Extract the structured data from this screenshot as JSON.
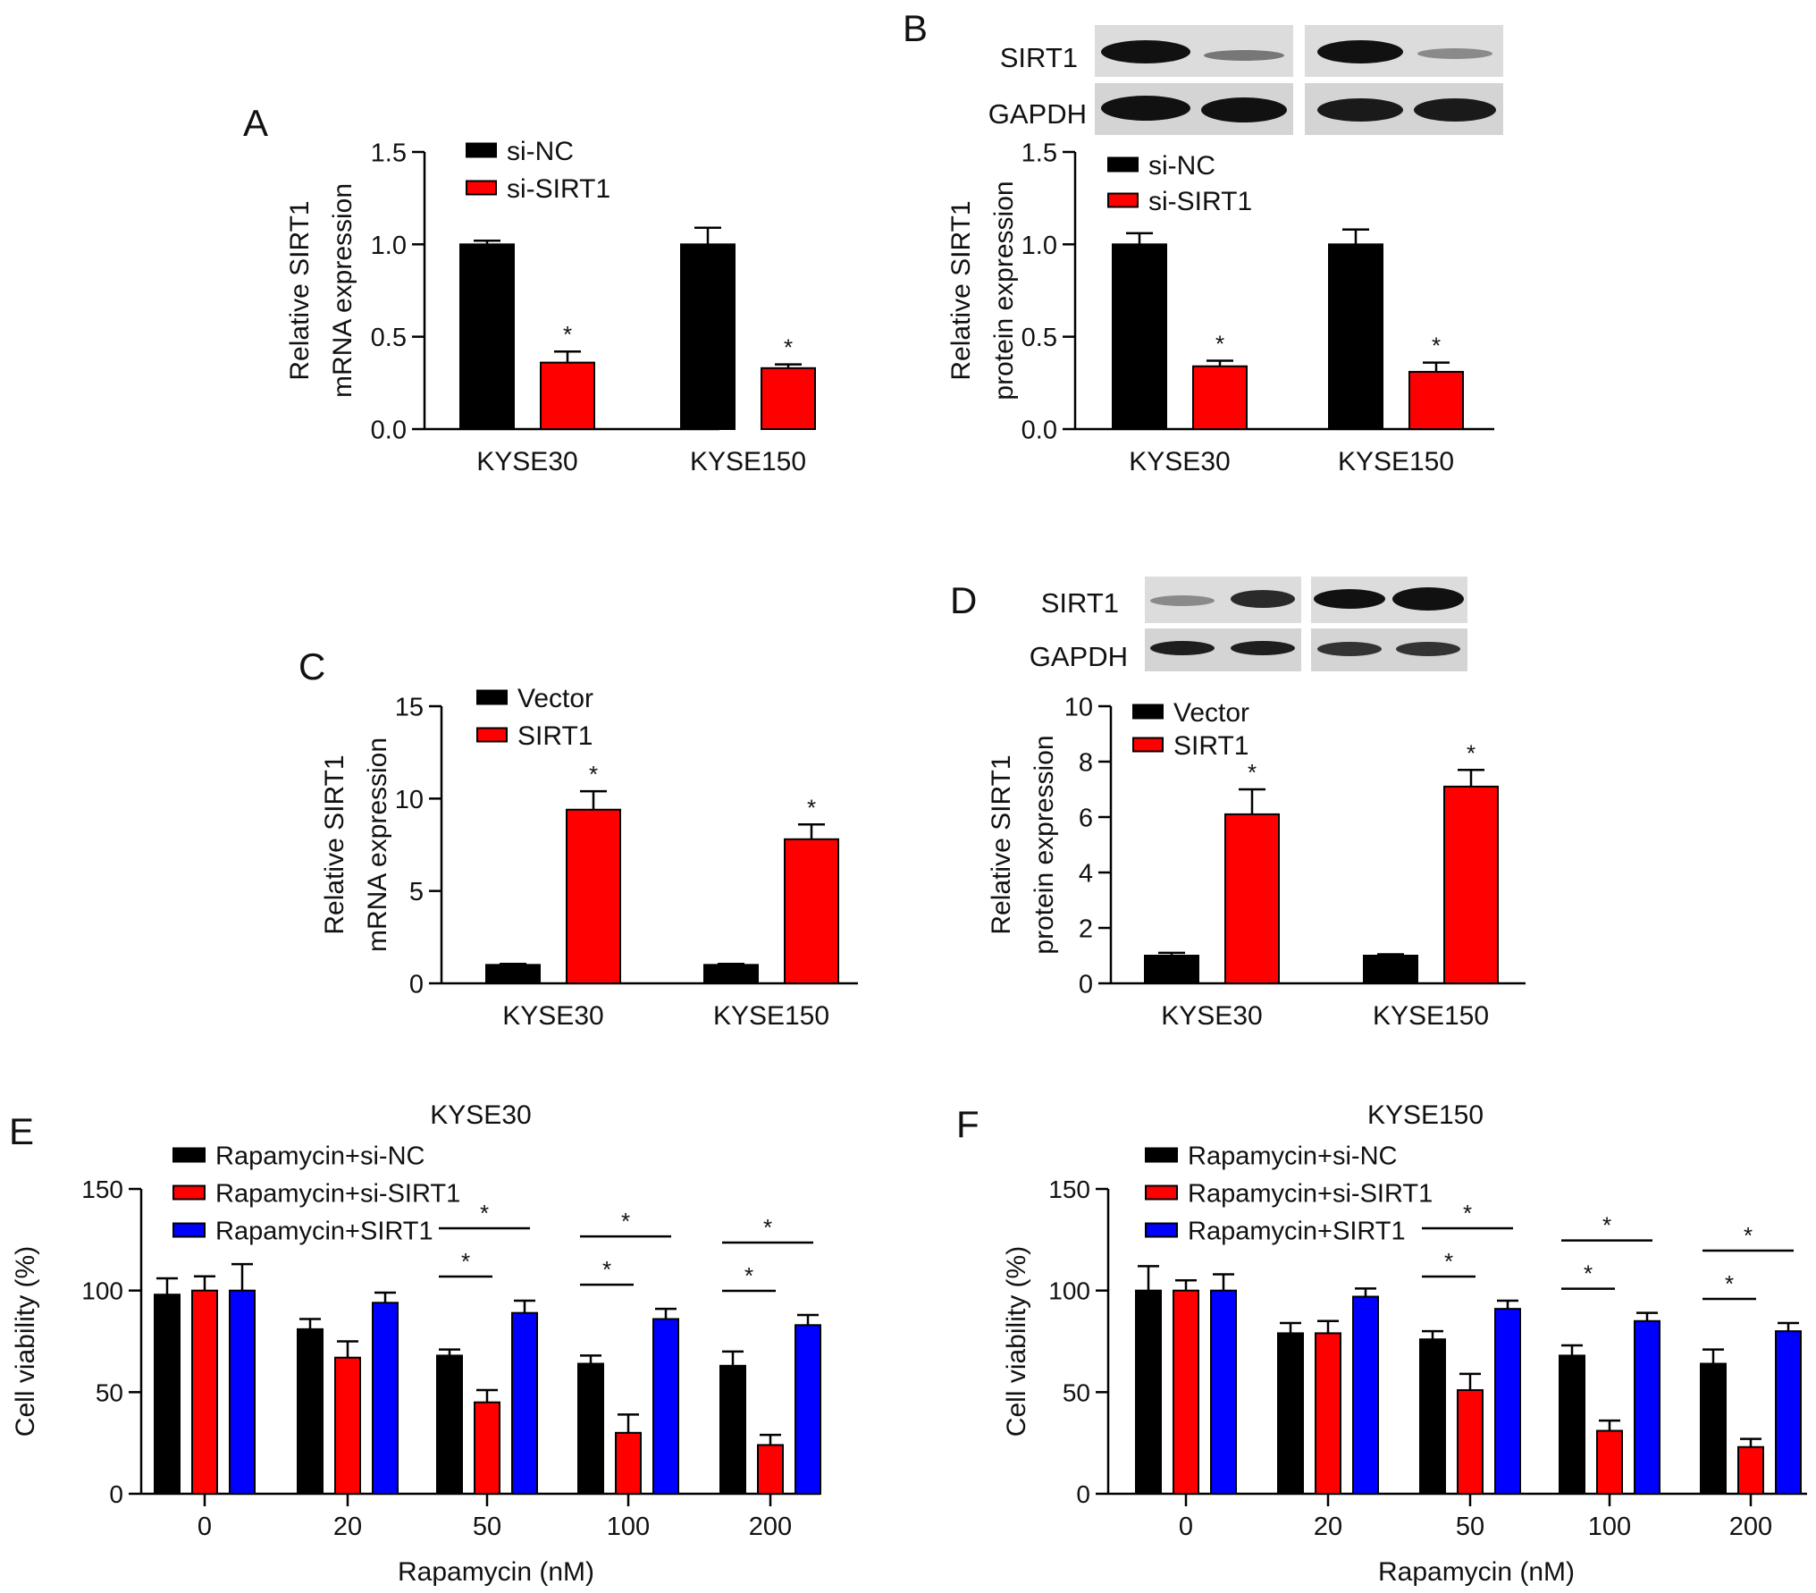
{
  "colors": {
    "black": "#000000",
    "red": "#ff0000",
    "blue": "#0000ff",
    "blot_bg": "#d8d8d8",
    "band": "#111111"
  },
  "blot_labels": {
    "sirt1": "SIRT1",
    "gapdh": "GAPDH"
  },
  "chart_data": [
    {
      "panel": "A",
      "type": "bar",
      "title": "",
      "categories": [
        "KYSE30",
        "KYSE150"
      ],
      "ylabel": [
        "Relative SIRT1",
        "mRNA expression"
      ],
      "xlabel": "",
      "ylim": [
        0,
        1.5
      ],
      "yticks": [
        0.0,
        0.5,
        1.0,
        1.5
      ],
      "tick_decimals": 1,
      "legend_position": "top-left",
      "grid": false,
      "series": [
        {
          "name": "si-NC",
          "color": "black",
          "values": [
            1.0,
            1.0
          ],
          "errors": [
            0.02,
            0.09
          ],
          "stars": [
            false,
            false
          ]
        },
        {
          "name": "si-SIRT1",
          "color": "red",
          "values": [
            0.36,
            0.33
          ],
          "errors": [
            0.06,
            0.02
          ],
          "stars": [
            true,
            true
          ]
        }
      ]
    },
    {
      "panel": "B",
      "type": "bar",
      "title": "",
      "categories": [
        "KYSE30",
        "KYSE150"
      ],
      "ylabel": [
        "Relative SIRT1",
        "protein expression"
      ],
      "xlabel": "",
      "ylim": [
        0,
        1.5
      ],
      "yticks": [
        0.0,
        0.5,
        1.0,
        1.5
      ],
      "tick_decimals": 1,
      "legend_position": "top-left",
      "grid": false,
      "series": [
        {
          "name": "si-NC",
          "color": "black",
          "values": [
            1.0,
            1.0
          ],
          "errors": [
            0.06,
            0.08
          ],
          "stars": [
            false,
            false
          ]
        },
        {
          "name": "si-SIRT1",
          "color": "red",
          "values": [
            0.34,
            0.31
          ],
          "errors": [
            0.03,
            0.05
          ],
          "stars": [
            true,
            true
          ]
        }
      ]
    },
    {
      "panel": "C",
      "type": "bar",
      "title": "",
      "categories": [
        "KYSE30",
        "KYSE150"
      ],
      "ylabel": [
        "Relative SIRT1",
        "mRNA expression"
      ],
      "xlabel": "",
      "ylim": [
        0,
        15
      ],
      "yticks": [
        0,
        5,
        10,
        15
      ],
      "tick_decimals": 0,
      "legend_position": "top-left",
      "grid": false,
      "series": [
        {
          "name": "Vector",
          "color": "black",
          "values": [
            1.0,
            1.0
          ],
          "errors": [
            0.05,
            0.05
          ],
          "stars": [
            false,
            false
          ]
        },
        {
          "name": "SIRT1",
          "color": "red",
          "values": [
            9.4,
            7.8
          ],
          "errors": [
            1.0,
            0.8
          ],
          "stars": [
            true,
            true
          ]
        }
      ]
    },
    {
      "panel": "D",
      "type": "bar",
      "title": "",
      "categories": [
        "KYSE30",
        "KYSE150"
      ],
      "ylabel": [
        "Relative SIRT1",
        "protein expression"
      ],
      "xlabel": "",
      "ylim": [
        0,
        10
      ],
      "yticks": [
        0,
        2,
        4,
        6,
        8,
        10
      ],
      "tick_decimals": 0,
      "legend_position": "top-left",
      "grid": false,
      "series": [
        {
          "name": "Vector",
          "color": "black",
          "values": [
            1.0,
            1.0
          ],
          "errors": [
            0.1,
            0.05
          ],
          "stars": [
            false,
            false
          ]
        },
        {
          "name": "SIRT1",
          "color": "red",
          "values": [
            6.1,
            7.1
          ],
          "errors": [
            0.9,
            0.6
          ],
          "stars": [
            true,
            true
          ]
        }
      ]
    },
    {
      "panel": "E",
      "type": "bar",
      "title": "KYSE30",
      "categories": [
        "0",
        "20",
        "50",
        "100",
        "200"
      ],
      "ylabel": [
        "Cell viability (%)"
      ],
      "xlabel": "Rapamycin (nM)",
      "ylim": [
        0,
        150
      ],
      "yticks": [
        0,
        50,
        100,
        150
      ],
      "tick_decimals": 0,
      "legend_position": "top-left",
      "grid": false,
      "series": [
        {
          "name": "Rapamycin+si-NC",
          "color": "black",
          "values": [
            98,
            81,
            68,
            64,
            63
          ],
          "errors": [
            8,
            5,
            3,
            4,
            7
          ]
        },
        {
          "name": "Rapamycin+si-SIRT1",
          "color": "red",
          "values": [
            100,
            67,
            45,
            30,
            24
          ],
          "errors": [
            7,
            8,
            6,
            9,
            5
          ]
        },
        {
          "name": "Rapamycin+SIRT1",
          "color": "blue",
          "values": [
            100,
            94,
            89,
            86,
            83
          ],
          "errors": [
            13,
            5,
            6,
            5,
            5
          ]
        }
      ],
      "significance": [
        {
          "category": 2,
          "from": 0,
          "to": 1
        },
        {
          "category": 2,
          "from": 0,
          "to": 2
        },
        {
          "category": 3,
          "from": 0,
          "to": 1
        },
        {
          "category": 3,
          "from": 0,
          "to": 2
        },
        {
          "category": 4,
          "from": 0,
          "to": 1
        },
        {
          "category": 4,
          "from": 0,
          "to": 2
        }
      ]
    },
    {
      "panel": "F",
      "type": "bar",
      "title": "KYSE150",
      "categories": [
        "0",
        "20",
        "50",
        "100",
        "200"
      ],
      "ylabel": [
        "Cell viability (%)"
      ],
      "xlabel": "Rapamycin (nM)",
      "ylim": [
        0,
        150
      ],
      "yticks": [
        0,
        50,
        100,
        150
      ],
      "tick_decimals": 0,
      "legend_position": "top-left",
      "grid": false,
      "series": [
        {
          "name": "Rapamycin+si-NC",
          "color": "black",
          "values": [
            100,
            79,
            76,
            68,
            64
          ],
          "errors": [
            12,
            5,
            4,
            5,
            7
          ]
        },
        {
          "name": "Rapamycin+si-SIRT1",
          "color": "red",
          "values": [
            100,
            79,
            51,
            31,
            23
          ],
          "errors": [
            5,
            6,
            8,
            5,
            4
          ]
        },
        {
          "name": "Rapamycin+SIRT1",
          "color": "blue",
          "values": [
            100,
            97,
            91,
            85,
            80
          ],
          "errors": [
            8,
            4,
            4,
            4,
            4
          ]
        }
      ],
      "significance": [
        {
          "category": 2,
          "from": 0,
          "to": 1
        },
        {
          "category": 2,
          "from": 0,
          "to": 2
        },
        {
          "category": 3,
          "from": 0,
          "to": 1
        },
        {
          "category": 3,
          "from": 0,
          "to": 2
        },
        {
          "category": 4,
          "from": 0,
          "to": 1
        },
        {
          "category": 4,
          "from": 0,
          "to": 2
        }
      ]
    }
  ]
}
